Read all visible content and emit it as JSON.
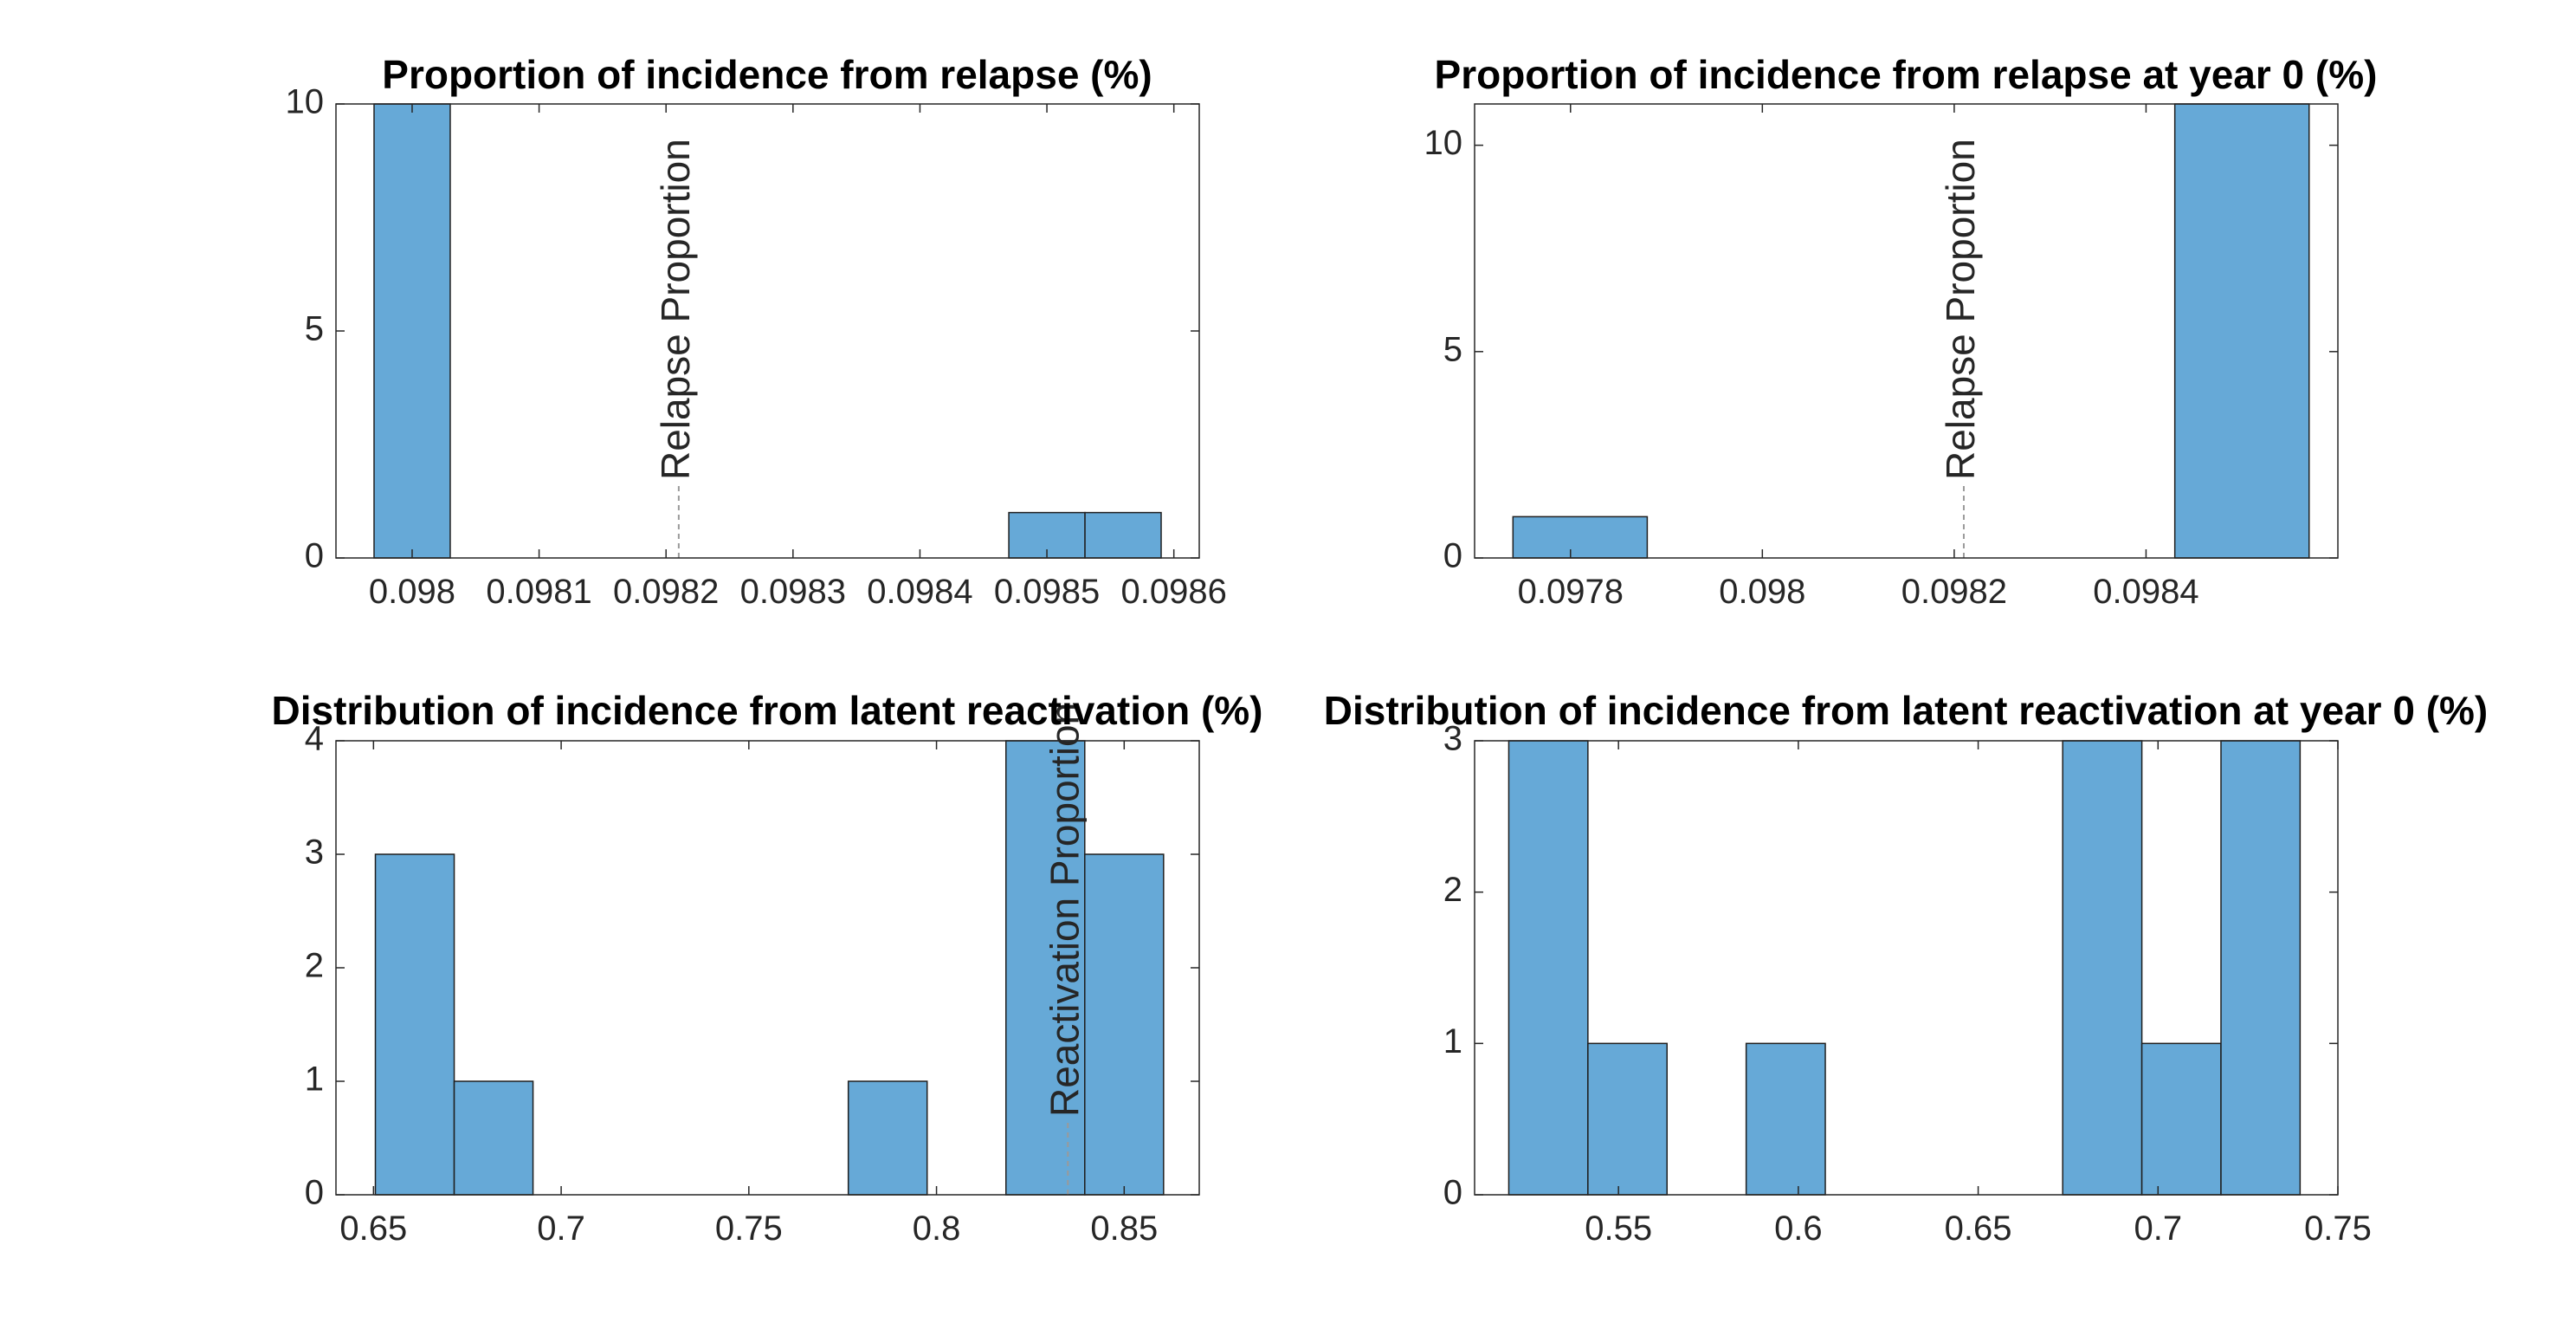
{
  "chart_data": [
    {
      "type": "bar",
      "title": "Proportion of incidence from relapse (%)",
      "xlabel": "",
      "ylabel": "",
      "xlim": [
        0.09794,
        0.09862
      ],
      "ylim": [
        0,
        10
      ],
      "xticks": [
        "0.098",
        "0.0981",
        "0.0982",
        "0.0983",
        "0.0984",
        "0.0985",
        "0.0986"
      ],
      "yticks": [
        "0",
        "5",
        "10"
      ],
      "bins": [
        {
          "x0": 0.09797,
          "x1": 0.09803,
          "count": 10
        },
        {
          "x0": 0.09847,
          "x1": 0.09853,
          "count": 1
        },
        {
          "x0": 0.09853,
          "x1": 0.09859,
          "count": 1
        }
      ],
      "reference_line": {
        "x": 0.09821,
        "label": "Relapse Proportion"
      },
      "bar_color": "#66a9d7",
      "grid": false
    },
    {
      "type": "bar",
      "title": "Proportion of incidence from relapse at year 0 (%)",
      "xlabel": "",
      "ylabel": "",
      "xlim": [
        0.0977,
        0.0986
      ],
      "ylim": [
        0,
        11
      ],
      "xticks": [
        "0.0978",
        "0.098",
        "0.0982",
        "0.0984"
      ],
      "yticks": [
        "0",
        "5",
        "10"
      ],
      "bins": [
        {
          "x0": 0.09774,
          "x1": 0.09788,
          "count": 1
        },
        {
          "x0": 0.09843,
          "x1": 0.09857,
          "count": 11
        }
      ],
      "reference_line": {
        "x": 0.09821,
        "label": "Relapse Proportion"
      },
      "bar_color": "#66a9d7",
      "grid": false
    },
    {
      "type": "bar",
      "title": "Distribution of incidence from latent reactivation (%)",
      "xlabel": "",
      "ylabel": "",
      "xlim": [
        0.64,
        0.87
      ],
      "ylim": [
        0,
        4
      ],
      "xticks": [
        "0.65",
        "0.7",
        "0.75",
        "0.8",
        "0.85"
      ],
      "yticks": [
        "0",
        "1",
        "2",
        "3",
        "4"
      ],
      "bins": [
        {
          "x0": 0.6505,
          "x1": 0.6715,
          "count": 3
        },
        {
          "x0": 0.6715,
          "x1": 0.6925,
          "count": 1
        },
        {
          "x0": 0.7765,
          "x1": 0.7975,
          "count": 1
        },
        {
          "x0": 0.8185,
          "x1": 0.8395,
          "count": 4
        },
        {
          "x0": 0.8395,
          "x1": 0.8605,
          "count": 3
        }
      ],
      "reference_line": {
        "x": 0.835,
        "label": "Reactivation Proportion"
      },
      "bar_color": "#66a9d7",
      "grid": false
    },
    {
      "type": "bar",
      "title": "Distribution of incidence from latent reactivation at year 0 (%)",
      "xlabel": "",
      "ylabel": "",
      "xlim": [
        0.51,
        0.75
      ],
      "ylim": [
        0,
        3
      ],
      "xticks": [
        "0.55",
        "0.6",
        "0.65",
        "0.7",
        "0.75"
      ],
      "yticks": [
        "0",
        "1",
        "2",
        "3"
      ],
      "bins": [
        {
          "x0": 0.5195,
          "x1": 0.5415,
          "count": 3
        },
        {
          "x0": 0.5415,
          "x1": 0.5635,
          "count": 1
        },
        {
          "x0": 0.5855,
          "x1": 0.6075,
          "count": 1
        },
        {
          "x0": 0.6735,
          "x1": 0.6955,
          "count": 3
        },
        {
          "x0": 0.6955,
          "x1": 0.7175,
          "count": 1
        },
        {
          "x0": 0.7175,
          "x1": 0.7395,
          "count": 3
        }
      ],
      "reference_line": null,
      "bar_color": "#66a9d7",
      "grid": false
    }
  ]
}
